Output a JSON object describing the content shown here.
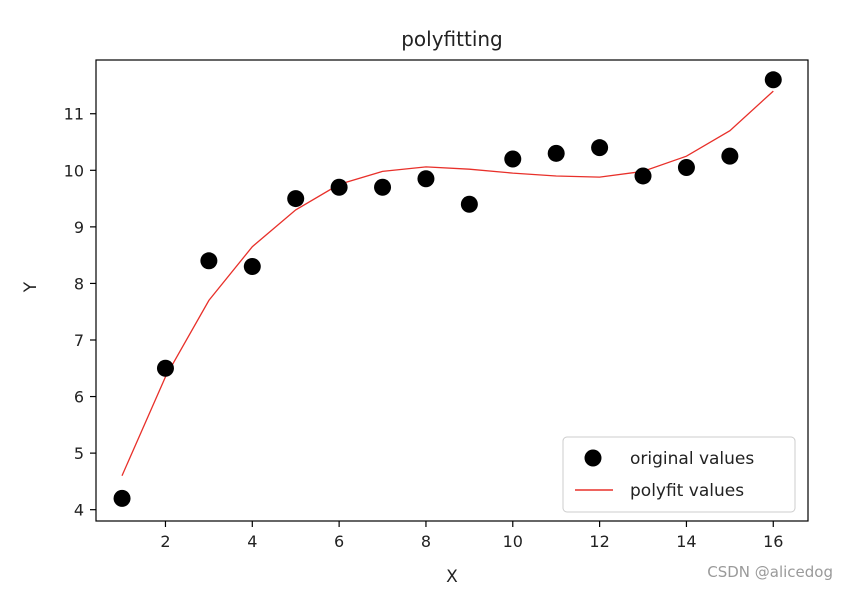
{
  "chart_data": {
    "type": "scatter",
    "title": "polyfitting",
    "xlabel": "X",
    "ylabel": "Y",
    "xlim": [
      0.4,
      16.8
    ],
    "ylim": [
      3.8,
      11.95
    ],
    "xticks": [
      2,
      4,
      6,
      8,
      10,
      12,
      14,
      16
    ],
    "yticks": [
      4,
      5,
      6,
      7,
      8,
      9,
      10,
      11
    ],
    "grid": false,
    "legend_position": "lower-right",
    "series": [
      {
        "name": "original values",
        "kind": "scatter",
        "color": "#000000",
        "x": [
          1,
          2,
          3,
          4,
          5,
          6,
          7,
          8,
          9,
          10,
          11,
          12,
          13,
          14,
          15,
          16
        ],
        "y": [
          4.2,
          6.5,
          8.4,
          8.3,
          9.5,
          9.7,
          9.7,
          9.85,
          9.4,
          10.2,
          10.3,
          10.4,
          9.9,
          10.05,
          10.25,
          11.6
        ]
      },
      {
        "name": "polyfit values",
        "kind": "line",
        "color": "#e8302a",
        "x": [
          1,
          2,
          3,
          4,
          5,
          6,
          7,
          8,
          9,
          10,
          11,
          12,
          13,
          14,
          15,
          16
        ],
        "y": [
          4.6,
          6.35,
          7.7,
          8.65,
          9.3,
          9.75,
          9.98,
          10.06,
          10.02,
          9.95,
          9.9,
          9.88,
          9.98,
          10.25,
          10.7,
          11.4
        ]
      }
    ]
  },
  "watermark": "CSDN @alicedog"
}
